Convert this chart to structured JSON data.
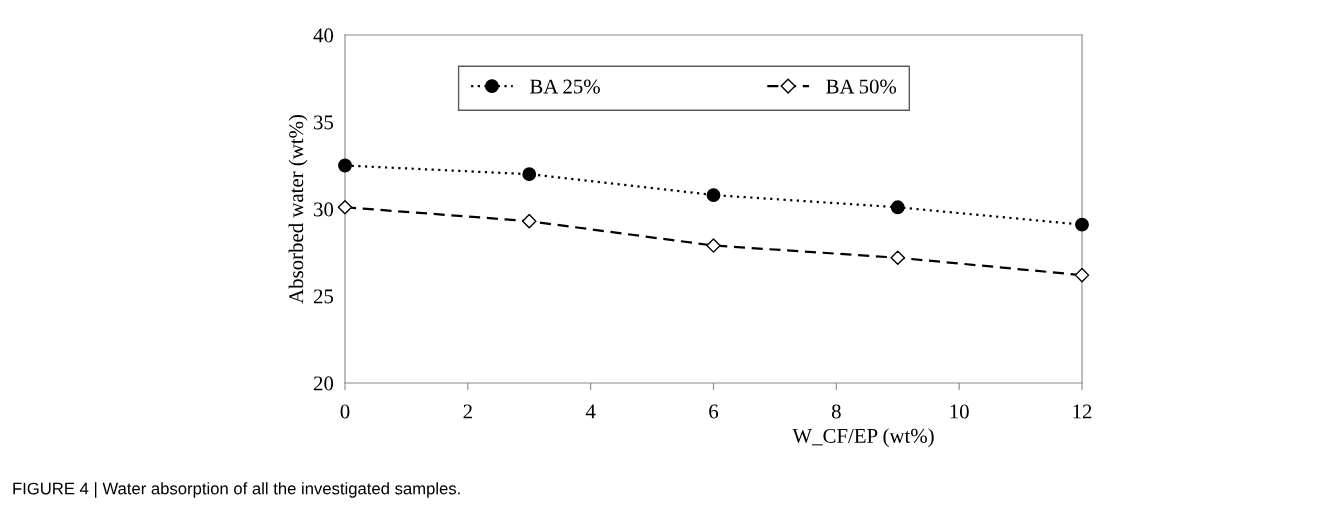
{
  "chart_data": {
    "type": "line",
    "xlabel": "W_CF/EP (wt%)",
    "ylabel": "Absorbed water (wt%)",
    "x": [
      0,
      3,
      6,
      9,
      12
    ],
    "series": [
      {
        "name": "BA 25%",
        "color": "#000000",
        "values": [
          32.5,
          32.0,
          30.8,
          30.1,
          29.1
        ],
        "marker": "circle",
        "line_style": "dotted"
      },
      {
        "name": "BA 50%",
        "color": "#000000",
        "values": [
          30.1,
          29.3,
          27.9,
          27.2,
          26.2
        ],
        "marker": "diamond",
        "line_style": "dashed"
      }
    ],
    "xlim": [
      0,
      12
    ],
    "xticks": [
      0,
      2,
      4,
      6,
      8,
      10,
      12
    ],
    "ylim": [
      20,
      40
    ],
    "yticks": [
      20,
      25,
      30,
      35,
      40
    ],
    "grid": false,
    "legend": "top",
    "annotations": [
      "FIGURE 4 | Water absorption of all the investigated samples."
    ]
  }
}
